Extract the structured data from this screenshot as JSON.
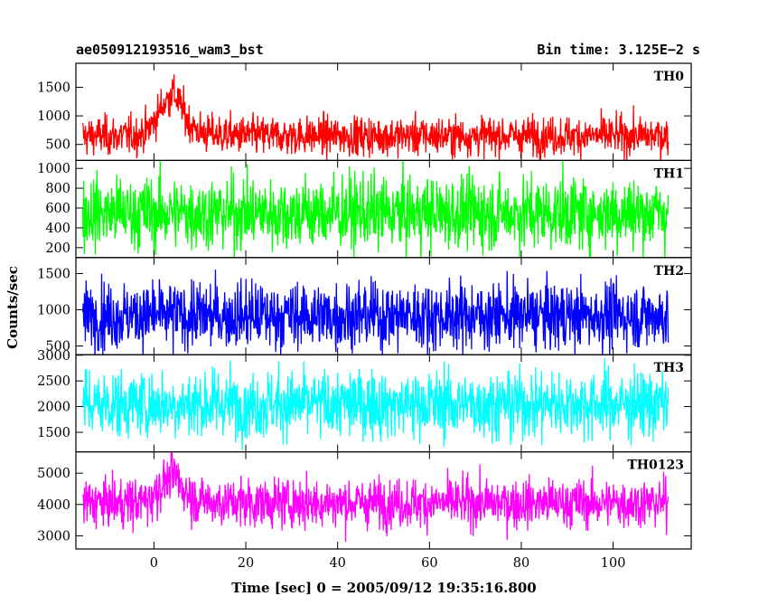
{
  "title_left": "ae050912193516_wam3_bst",
  "title_right": "Bin time: 3.125E−2 s",
  "chart_data": {
    "type": "line",
    "xlabel": "Time [sec] 0 = 2005/09/12 19:35:16.800",
    "ylabel": "Counts/sec",
    "xlim": [
      -17,
      117
    ],
    "x_ticks": [
      0,
      20,
      40,
      60,
      80,
      100
    ],
    "x_range": [
      -15.5,
      112
    ],
    "grid": false,
    "panels": [
      {
        "name": "TH0",
        "color": "#ff0000",
        "ylim": [
          220,
          1920
        ],
        "y_ticks": [
          500,
          1000,
          1500
        ],
        "baseline": 650,
        "noise": 170,
        "burst_peak": 650,
        "burst_time": 3.5,
        "burst_width": 2.6,
        "decay": 6,
        "decay_amp": 130
      },
      {
        "name": "TH1",
        "color": "#00ff00",
        "ylim": [
          100,
          1080
        ],
        "y_ticks": [
          200,
          400,
          600,
          800,
          1000
        ],
        "baseline": 550,
        "noise": 185,
        "burst_peak": 0,
        "burst_time": 3.5,
        "burst_width": 2.6,
        "decay": 6,
        "decay_amp": 0
      },
      {
        "name": "TH2",
        "color": "#0000ff",
        "ylim": [
          380,
          1720
        ],
        "y_ticks": [
          500,
          1000,
          1500
        ],
        "baseline": 920,
        "noise": 230,
        "burst_peak": 0,
        "burst_time": 3.5,
        "burst_width": 2.6,
        "decay": 6,
        "decay_amp": 0
      },
      {
        "name": "TH3",
        "color": "#00ffff",
        "ylim": [
          1120,
          3010
        ],
        "y_ticks": [
          1500,
          2000,
          2500,
          3000
        ],
        "baseline": 2050,
        "noise": 330,
        "burst_peak": 0,
        "burst_time": 3.5,
        "burst_width": 2.6,
        "decay": 6,
        "decay_amp": 0
      },
      {
        "name": "TH0123",
        "color": "#ff00ff",
        "ylim": [
          2580,
          5680
        ],
        "y_ticks": [
          3000,
          4000,
          5000
        ],
        "baseline": 4050,
        "noise": 390,
        "burst_peak": 750,
        "burst_time": 3.5,
        "burst_width": 2.6,
        "decay": 6,
        "decay_amp": 150
      }
    ]
  }
}
